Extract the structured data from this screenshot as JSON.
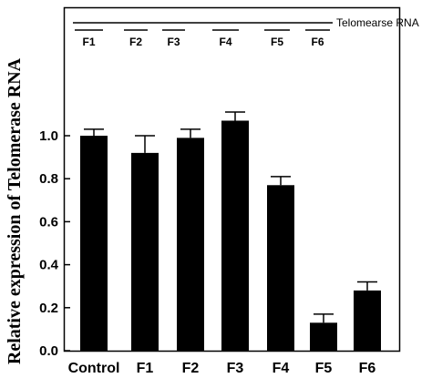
{
  "chart_data": {
    "type": "bar",
    "title": "",
    "xlabel": "",
    "ylabel": "Relative expression of Telomerase RNA",
    "ylim": [
      0,
      1.28
    ],
    "yticks": [
      "0.0",
      "0.2",
      "0.4",
      "0.6",
      "0.8",
      "1.0"
    ],
    "categories": [
      "Control",
      "F1",
      "F2",
      "F3",
      "F4",
      "F5",
      "F6"
    ],
    "values": [
      1.0,
      0.92,
      0.99,
      1.07,
      0.77,
      0.13,
      0.28
    ],
    "errors": [
      0.03,
      0.08,
      0.04,
      0.04,
      0.04,
      0.04,
      0.04
    ],
    "bar_color": "#000000",
    "legend": "none",
    "grid": false,
    "schematic": {
      "rna_label": "Telomearse RNA",
      "fragments": [
        "F1",
        "F2",
        "F3",
        "F4",
        "F5",
        "F6"
      ]
    }
  }
}
